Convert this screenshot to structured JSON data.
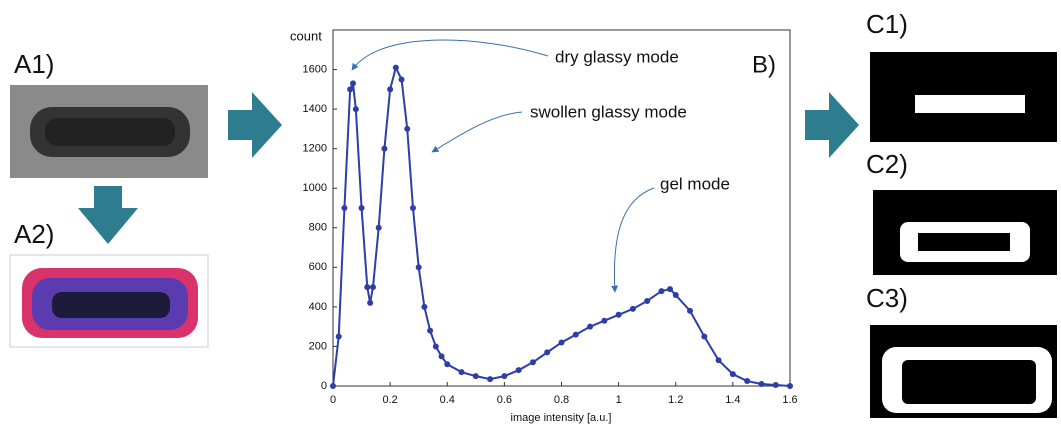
{
  "panels": [
    "A1)",
    "A2)",
    "C1)",
    "C2)",
    "C3)"
  ],
  "chart_data": {
    "type": "line",
    "y_label": "count",
    "x_label": "image intensity [a.u.]",
    "annotations": [
      "dry glassy mode",
      "swollen glassy mode",
      "gel mode",
      "B)"
    ],
    "x": [
      0,
      0.02,
      0.04,
      0.06,
      0.07,
      0.08,
      0.1,
      0.12,
      0.13,
      0.14,
      0.16,
      0.18,
      0.2,
      0.22,
      0.24,
      0.26,
      0.28,
      0.3,
      0.32,
      0.34,
      0.36,
      0.38,
      0.4,
      0.45,
      0.5,
      0.55,
      0.6,
      0.65,
      0.7,
      0.75,
      0.8,
      0.85,
      0.9,
      0.95,
      1.0,
      1.05,
      1.1,
      1.15,
      1.18,
      1.2,
      1.25,
      1.3,
      1.35,
      1.4,
      1.45,
      1.5,
      1.55,
      1.6
    ],
    "series": [
      {
        "color": "#2d3fa6",
        "values": [
          0,
          250,
          900,
          1500,
          1530,
          1400,
          900,
          500,
          420,
          500,
          800,
          1200,
          1500,
          1610,
          1550,
          1300,
          900,
          600,
          400,
          280,
          200,
          150,
          110,
          70,
          50,
          35,
          50,
          80,
          120,
          170,
          220,
          260,
          300,
          330,
          360,
          390,
          430,
          480,
          490,
          460,
          380,
          250,
          130,
          60,
          25,
          10,
          5,
          0
        ]
      }
    ],
    "xlim": [
      0,
      1.6
    ],
    "ylim": [
      0,
      1800
    ],
    "xticks": [
      0,
      0.2,
      0.4,
      0.6,
      0.8,
      1,
      1.2,
      1.4,
      1.6
    ],
    "yticks": [
      0,
      200,
      400,
      600,
      800,
      1000,
      1200,
      1400,
      1600
    ]
  }
}
